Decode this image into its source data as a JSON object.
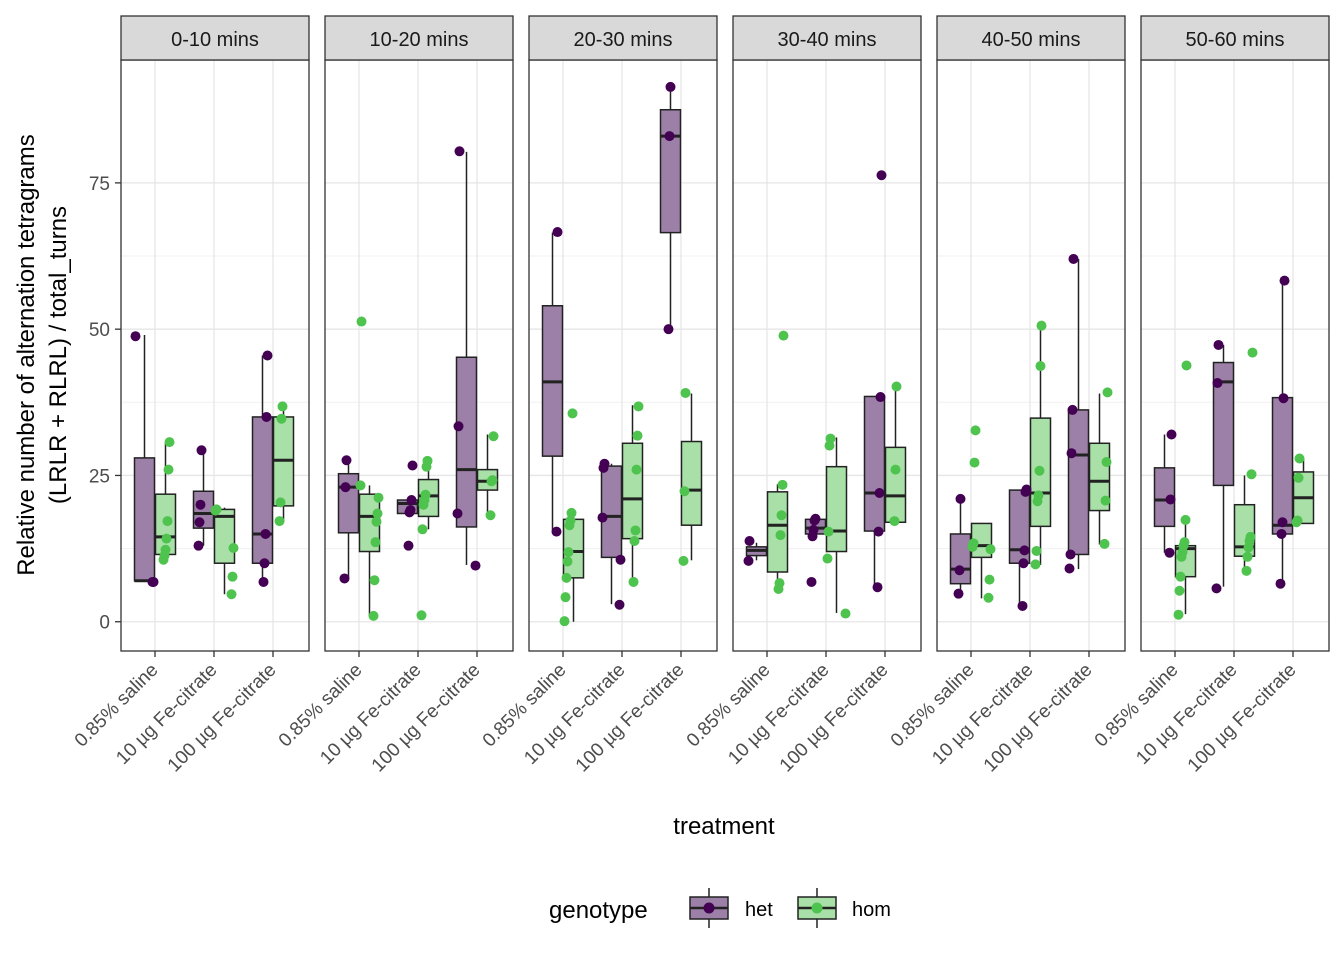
{
  "chart_data": {
    "type": "boxplot",
    "xlabel": "treatment",
    "ylabel_lines": [
      "Relative number of alternation tetragrams",
      "(LRLR + RLRL) / total_turns"
    ],
    "ylim": [
      -5,
      96
    ],
    "y_ticks": [
      0,
      25,
      50,
      75
    ],
    "grid": true,
    "facets": [
      "0-10 mins",
      "10-20 mins",
      "20-30 mins",
      "30-40 mins",
      "40-50 mins",
      "50-60 mins"
    ],
    "categories": [
      "0.85% saline",
      "10 µg Fe-citrate",
      "100 µg Fe-citrate"
    ],
    "legend": {
      "title": "genotype",
      "position": "bottom",
      "items": [
        {
          "name": "het",
          "fill": "#9c80a8",
          "point": "#440154"
        },
        {
          "name": "hom",
          "fill": "#a8e0a8",
          "point": "#4ec34e"
        }
      ]
    },
    "panels": [
      {
        "facet": "0-10 mins",
        "boxes": [
          {
            "treatment": "0.85% saline",
            "genotype": "het",
            "q1": 7,
            "median": 7,
            "q3": 28,
            "lo": 7,
            "hi": 49,
            "points": [
              48.8,
              6.8,
              6.8
            ]
          },
          {
            "treatment": "0.85% saline",
            "genotype": "hom",
            "q1": 11.5,
            "median": 14.5,
            "q3": 21.8,
            "lo": 10.5,
            "hi": 30.5,
            "points": [
              30.7,
              26,
              17.2,
              14.2,
              12.3,
              11.3,
              10.6
            ]
          },
          {
            "treatment": "10 µg Fe-citrate",
            "genotype": "het",
            "q1": 16,
            "median": 18.5,
            "q3": 22.3,
            "lo": 13,
            "hi": 29.5,
            "points": [
              29.3,
              20,
              17,
              13
            ]
          },
          {
            "treatment": "10 µg Fe-citrate",
            "genotype": "hom",
            "q1": 10,
            "median": 18,
            "q3": 19.2,
            "lo": 4.7,
            "hi": 19.5,
            "points": [
              19.2,
              19,
              12.6,
              7.7,
              4.7
            ]
          },
          {
            "treatment": "100 µg Fe-citrate",
            "genotype": "het",
            "q1": 10,
            "median": 15,
            "q3": 35,
            "lo": 6.8,
            "hi": 45.5,
            "points": [
              45.5,
              35,
              15,
              10,
              6.8
            ]
          },
          {
            "treatment": "100 µg Fe-citrate",
            "genotype": "hom",
            "q1": 19.8,
            "median": 27.6,
            "q3": 35,
            "lo": 17,
            "hi": 37,
            "points": [
              36.8,
              34.7,
              20.4,
              17.2
            ]
          }
        ]
      },
      {
        "facet": "10-20 mins",
        "boxes": [
          {
            "treatment": "0.85% saline",
            "genotype": "het",
            "q1": 15.2,
            "median": 23,
            "q3": 25.3,
            "lo": 7.5,
            "hi": 27.5,
            "points": [
              27.6,
              23,
              7.4
            ]
          },
          {
            "treatment": "0.85% saline",
            "genotype": "hom",
            "q1": 12,
            "median": 18,
            "q3": 21.8,
            "lo": 1,
            "hi": 23.3,
            "points": [
              51.3,
              23.3,
              21.2,
              18.5,
              17.1,
              13.6,
              7.1,
              1
            ]
          },
          {
            "treatment": "10 µg Fe-citrate",
            "genotype": "het",
            "q1": 18.5,
            "median": 20.2,
            "q3": 20.8,
            "lo": 18.5,
            "hi": 21,
            "points": [
              26.7,
              20.8,
              19.1,
              18.7,
              13
            ]
          },
          {
            "treatment": "10 µg Fe-citrate",
            "genotype": "hom",
            "q1": 18,
            "median": 21.5,
            "q3": 24.3,
            "lo": 15.8,
            "hi": 27.5,
            "points": [
              27.5,
              26.5,
              21.7,
              20.8,
              20,
              15.8,
              1.1
            ]
          },
          {
            "treatment": "100 µg Fe-citrate",
            "genotype": "het",
            "q1": 16.2,
            "median": 26,
            "q3": 45.2,
            "lo": 9.7,
            "hi": 80.3,
            "points": [
              80.4,
              33.4,
              18.5,
              9.6
            ]
          },
          {
            "treatment": "100 µg Fe-citrate",
            "genotype": "hom",
            "q1": 22.5,
            "median": 24,
            "q3": 26,
            "lo": 18.2,
            "hi": 32,
            "points": [
              31.7,
              24.2,
              24,
              18.2
            ]
          }
        ]
      },
      {
        "facet": "20-30 mins",
        "boxes": [
          {
            "treatment": "0.85% saline",
            "genotype": "het",
            "q1": 28.3,
            "median": 41,
            "q3": 54,
            "lo": 15.5,
            "hi": 66.5,
            "points": [
              66.6,
              15.4
            ]
          },
          {
            "treatment": "0.85% saline",
            "genotype": "hom",
            "q1": 7.5,
            "median": 12,
            "q3": 17.5,
            "lo": 0,
            "hi": 19,
            "points": [
              35.6,
              18.6,
              17.3,
              16.5,
              11.9,
              10.3,
              7.5,
              4.2,
              0.1
            ]
          },
          {
            "treatment": "10 µg Fe-citrate",
            "genotype": "het",
            "q1": 11,
            "median": 18,
            "q3": 26.6,
            "lo": 3,
            "hi": 27,
            "points": [
              27,
              26.3,
              17.8,
              10.6,
              2.9
            ]
          },
          {
            "treatment": "10 µg Fe-citrate",
            "genotype": "hom",
            "q1": 14.2,
            "median": 21,
            "q3": 30.5,
            "lo": 6.9,
            "hi": 37,
            "points": [
              36.8,
              31.8,
              26,
              15.6,
              13.8,
              6.8
            ]
          },
          {
            "treatment": "100 µg Fe-citrate",
            "genotype": "het",
            "q1": 66.5,
            "median": 83,
            "q3": 87.5,
            "lo": 50,
            "hi": 91.5,
            "points": [
              91.4,
              83,
              50
            ]
          },
          {
            "treatment": "100 µg Fe-citrate",
            "genotype": "hom",
            "q1": 16.5,
            "median": 22.5,
            "q3": 30.8,
            "lo": 10.5,
            "hi": 39,
            "points": [
              39.1,
              22.3,
              10.4
            ]
          }
        ]
      },
      {
        "facet": "30-40 mins",
        "boxes": [
          {
            "treatment": "0.85% saline",
            "genotype": "het",
            "q1": 11.3,
            "median": 12.2,
            "q3": 12.8,
            "lo": 10.5,
            "hi": 13.5,
            "points": [
              13.8,
              10.4
            ]
          },
          {
            "treatment": "0.85% saline",
            "genotype": "hom",
            "q1": 8.5,
            "median": 16.5,
            "q3": 22.2,
            "lo": 5.5,
            "hi": 23.5,
            "points": [
              48.9,
              23.4,
              18.2,
              14.8,
              6.6,
              5.6
            ]
          },
          {
            "treatment": "10 µg Fe-citrate",
            "genotype": "het",
            "q1": 15,
            "median": 16,
            "q3": 17.5,
            "lo": 14.5,
            "hi": 17.8,
            "points": [
              17.6,
              17.3,
              15.7,
              14.6,
              6.8
            ]
          },
          {
            "treatment": "10 µg Fe-citrate",
            "genotype": "hom",
            "q1": 12,
            "median": 15.5,
            "q3": 26.5,
            "lo": 1.5,
            "hi": 31.5,
            "points": [
              31.3,
              30.1,
              15.4,
              10.8,
              1.4
            ]
          },
          {
            "treatment": "100 µg Fe-citrate",
            "genotype": "het",
            "q1": 15.5,
            "median": 22,
            "q3": 38.5,
            "lo": 6,
            "hi": 38.5,
            "points": [
              76.3,
              38.4,
              22,
              15.4,
              5.9
            ]
          },
          {
            "treatment": "100 µg Fe-citrate",
            "genotype": "hom",
            "q1": 17,
            "median": 21.5,
            "q3": 29.8,
            "lo": 17,
            "hi": 40,
            "points": [
              40.2,
              26,
              17.2
            ]
          }
        ]
      },
      {
        "facet": "40-50 mins",
        "boxes": [
          {
            "treatment": "0.85% saline",
            "genotype": "het",
            "q1": 6.5,
            "median": 9,
            "q3": 15,
            "lo": 5,
            "hi": 21,
            "points": [
              21,
              8.8,
              4.8
            ]
          },
          {
            "treatment": "0.85% saline",
            "genotype": "hom",
            "q1": 11,
            "median": 13,
            "q3": 16.8,
            "lo": 4,
            "hi": 16.8,
            "points": [
              32.7,
              27.2,
              13.4,
              12.8,
              12.4,
              7.2,
              4.1
            ]
          },
          {
            "treatment": "10 µg Fe-citrate",
            "genotype": "het",
            "q1": 10,
            "median": 12.3,
            "q3": 22.5,
            "lo": 2.7,
            "hi": 22.5,
            "points": [
              22.6,
              22.2,
              12.2,
              10,
              2.7
            ]
          },
          {
            "treatment": "10 µg Fe-citrate",
            "genotype": "hom",
            "q1": 16.3,
            "median": 22,
            "q3": 34.8,
            "lo": 9.7,
            "hi": 50.5,
            "points": [
              50.6,
              43.7,
              25.8,
              21.6,
              20.6,
              12.1,
              9.8
            ]
          },
          {
            "treatment": "100 µg Fe-citrate",
            "genotype": "het",
            "q1": 11.5,
            "median": 28.5,
            "q3": 36.2,
            "lo": 9,
            "hi": 62,
            "points": [
              62,
              36.2,
              28.8,
              11.5,
              9.1
            ]
          },
          {
            "treatment": "100 µg Fe-citrate",
            "genotype": "hom",
            "q1": 19,
            "median": 24,
            "q3": 30.5,
            "lo": 13.2,
            "hi": 39,
            "points": [
              39.2,
              27.3,
              20.7,
              13.3
            ]
          }
        ]
      },
      {
        "facet": "50-60 mins",
        "boxes": [
          {
            "treatment": "0.85% saline",
            "genotype": "het",
            "q1": 16.3,
            "median": 20.8,
            "q3": 26.3,
            "lo": 11.8,
            "hi": 32,
            "points": [
              32,
              20.9,
              11.8
            ]
          },
          {
            "treatment": "0.85% saline",
            "genotype": "hom",
            "q1": 7.7,
            "median": 12.5,
            "q3": 13,
            "lo": 1.3,
            "hi": 17.5,
            "points": [
              43.8,
              17.4,
              13.6,
              13,
              11.9,
              11.1,
              7.7,
              5.3,
              1.2
            ]
          },
          {
            "treatment": "10 µg Fe-citrate",
            "genotype": "het",
            "q1": 23.3,
            "median": 41,
            "q3": 44.3,
            "lo": 6,
            "hi": 47.3,
            "points": [
              47.3,
              40.8,
              5.7
            ]
          },
          {
            "treatment": "10 µg Fe-citrate",
            "genotype": "hom",
            "q1": 11.2,
            "median": 12.8,
            "q3": 20,
            "lo": 8.8,
            "hi": 25,
            "points": [
              46,
              25.2,
              14.5,
              13.8,
              12.7,
              11.1,
              8.7
            ]
          },
          {
            "treatment": "100 µg Fe-citrate",
            "genotype": "het",
            "q1": 15,
            "median": 16.5,
            "q3": 38.3,
            "lo": 6.5,
            "hi": 58.5,
            "points": [
              58.3,
              38.2,
              17,
              15,
              6.5
            ]
          },
          {
            "treatment": "100 µg Fe-citrate",
            "genotype": "hom",
            "q1": 16.8,
            "median": 21.2,
            "q3": 25.6,
            "lo": 16.8,
            "hi": 28,
            "points": [
              27.9,
              24.6,
              17.3,
              17
            ]
          }
        ]
      }
    ]
  }
}
